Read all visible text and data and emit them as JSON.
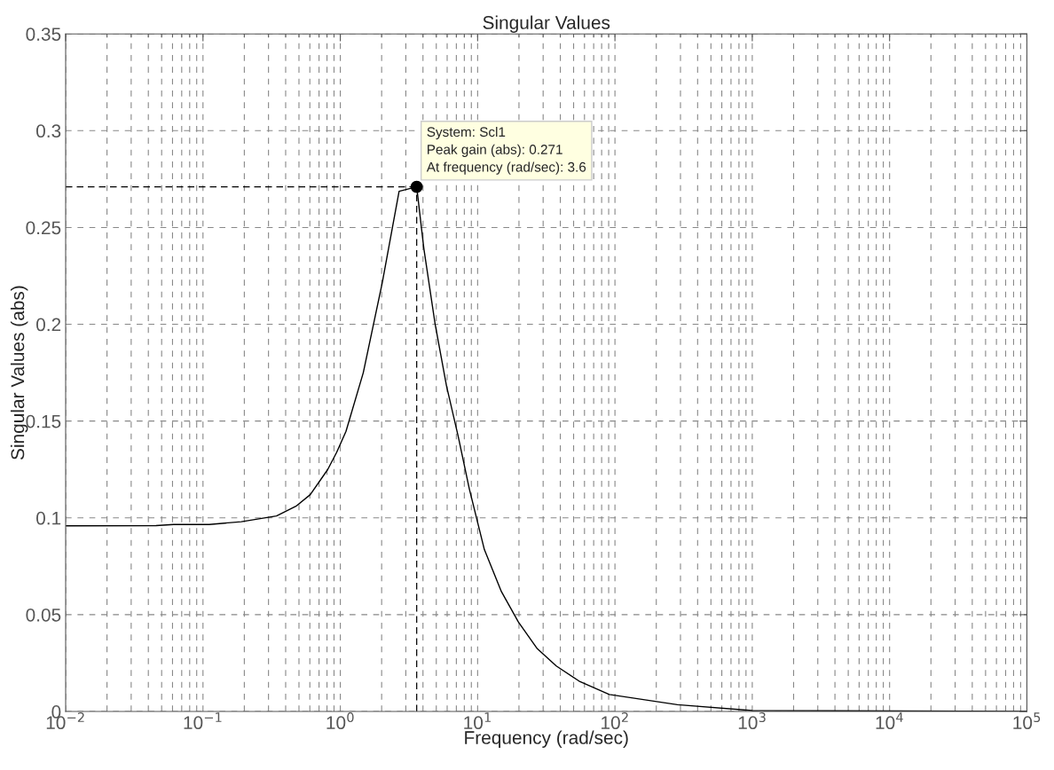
{
  "chart_data": {
    "type": "line",
    "title": "Singular Values",
    "xlabel": "Frequency (rad/sec)",
    "ylabel": "Singular Values (abs)",
    "log": "x",
    "grid": true,
    "marker": "none",
    "line_style": "solid",
    "xlim": [
      0.01,
      100000
    ],
    "ylim": [
      0,
      0.35
    ],
    "xticks": [
      {
        "value": 0.01,
        "label": "10$^{−2}$"
      },
      {
        "value": 0.1,
        "label": "10$^{−1}$"
      },
      {
        "value": 1,
        "label": "10$^{0}$"
      },
      {
        "value": 10,
        "label": "10$^{1}$"
      },
      {
        "value": 100,
        "label": "10$^{2}$"
      },
      {
        "value": 1000,
        "label": "10$^{3}$"
      },
      {
        "value": 10000,
        "label": "10$^{4}$"
      },
      {
        "value": 100000,
        "label": "10$^{5}$"
      }
    ],
    "yticks": [
      0,
      0.05,
      0.1,
      0.15,
      0.2,
      0.25,
      0.3,
      0.35
    ],
    "series": [
      {
        "color": "#000000",
        "x": [
          0.01,
          0.0455,
          0.061,
          0.111,
          0.19,
          0.343,
          0.475,
          0.604,
          0.81,
          0.94,
          1.1,
          1.47,
          2.02,
          2.68,
          3.6,
          4.06,
          4.91,
          5.94,
          7.19,
          8.7,
          11.2,
          14.9,
          19.8,
          27.2,
          37.4,
          54.8,
          91,
          285,
          1000,
          100000
        ],
        "values": [
          0.0959,
          0.096,
          0.0966,
          0.0966,
          0.098,
          0.101,
          0.106,
          0.112,
          0.125,
          0.1338,
          0.1447,
          0.175,
          0.2214,
          0.2687,
          0.271,
          0.239,
          0.1998,
          0.168,
          0.1427,
          0.115,
          0.0836,
          0.0619,
          0.0462,
          0.0324,
          0.0235,
          0.0157,
          0.0088,
          0.0035,
          0.0005,
          0
        ]
      }
    ],
    "ref_lines": [
      {
        "axis": "y",
        "value": 0.271,
        "color": "#000000",
        "line_style": "dashed"
      },
      {
        "axis": "x",
        "value": 3.6,
        "color": "#000000",
        "line_style": "dashed"
      }
    ],
    "annotations": [
      {
        "text": "System: Scl1\nPeak gain (abs): 0.271\nAt frequency (rad/sec): 3.6",
        "x": 3.6,
        "y": 0.271
      }
    ]
  }
}
